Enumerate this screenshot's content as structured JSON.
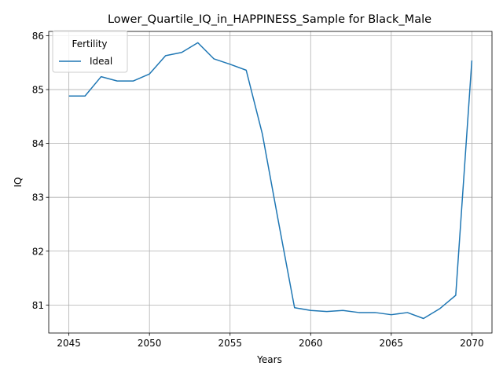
{
  "chart_data": {
    "type": "line",
    "title": "Lower_Quartile_IQ_in_HAPPINESS_Sample for Black_Male",
    "xlabel": "Years",
    "ylabel": "IQ",
    "xlim": [
      2043.75,
      2071.25
    ],
    "ylim": [
      80.48,
      86.08
    ],
    "xticks": [
      2045,
      2050,
      2055,
      2060,
      2065,
      2070
    ],
    "yticks": [
      81,
      82,
      83,
      84,
      85,
      86
    ],
    "grid": true,
    "legend": {
      "title": "Fertility",
      "position": "top-left"
    },
    "colors": {
      "series": "#1f77b4",
      "grid": "#b0b0b0",
      "axis": "#000000"
    },
    "series": [
      {
        "name": "Ideal",
        "x": [
          2045,
          2046,
          2047,
          2048,
          2049,
          2050,
          2051,
          2052,
          2053,
          2054,
          2055,
          2056,
          2057,
          2058,
          2059,
          2060,
          2061,
          2062,
          2063,
          2064,
          2065,
          2066,
          2067,
          2068,
          2069,
          2070
        ],
        "y": [
          84.88,
          84.88,
          85.24,
          85.16,
          85.16,
          85.29,
          85.63,
          85.69,
          85.87,
          85.57,
          85.47,
          85.36,
          84.18,
          82.55,
          80.95,
          80.9,
          80.88,
          80.9,
          80.86,
          80.86,
          80.82,
          80.86,
          80.75,
          80.93,
          81.18,
          85.54
        ]
      }
    ]
  }
}
